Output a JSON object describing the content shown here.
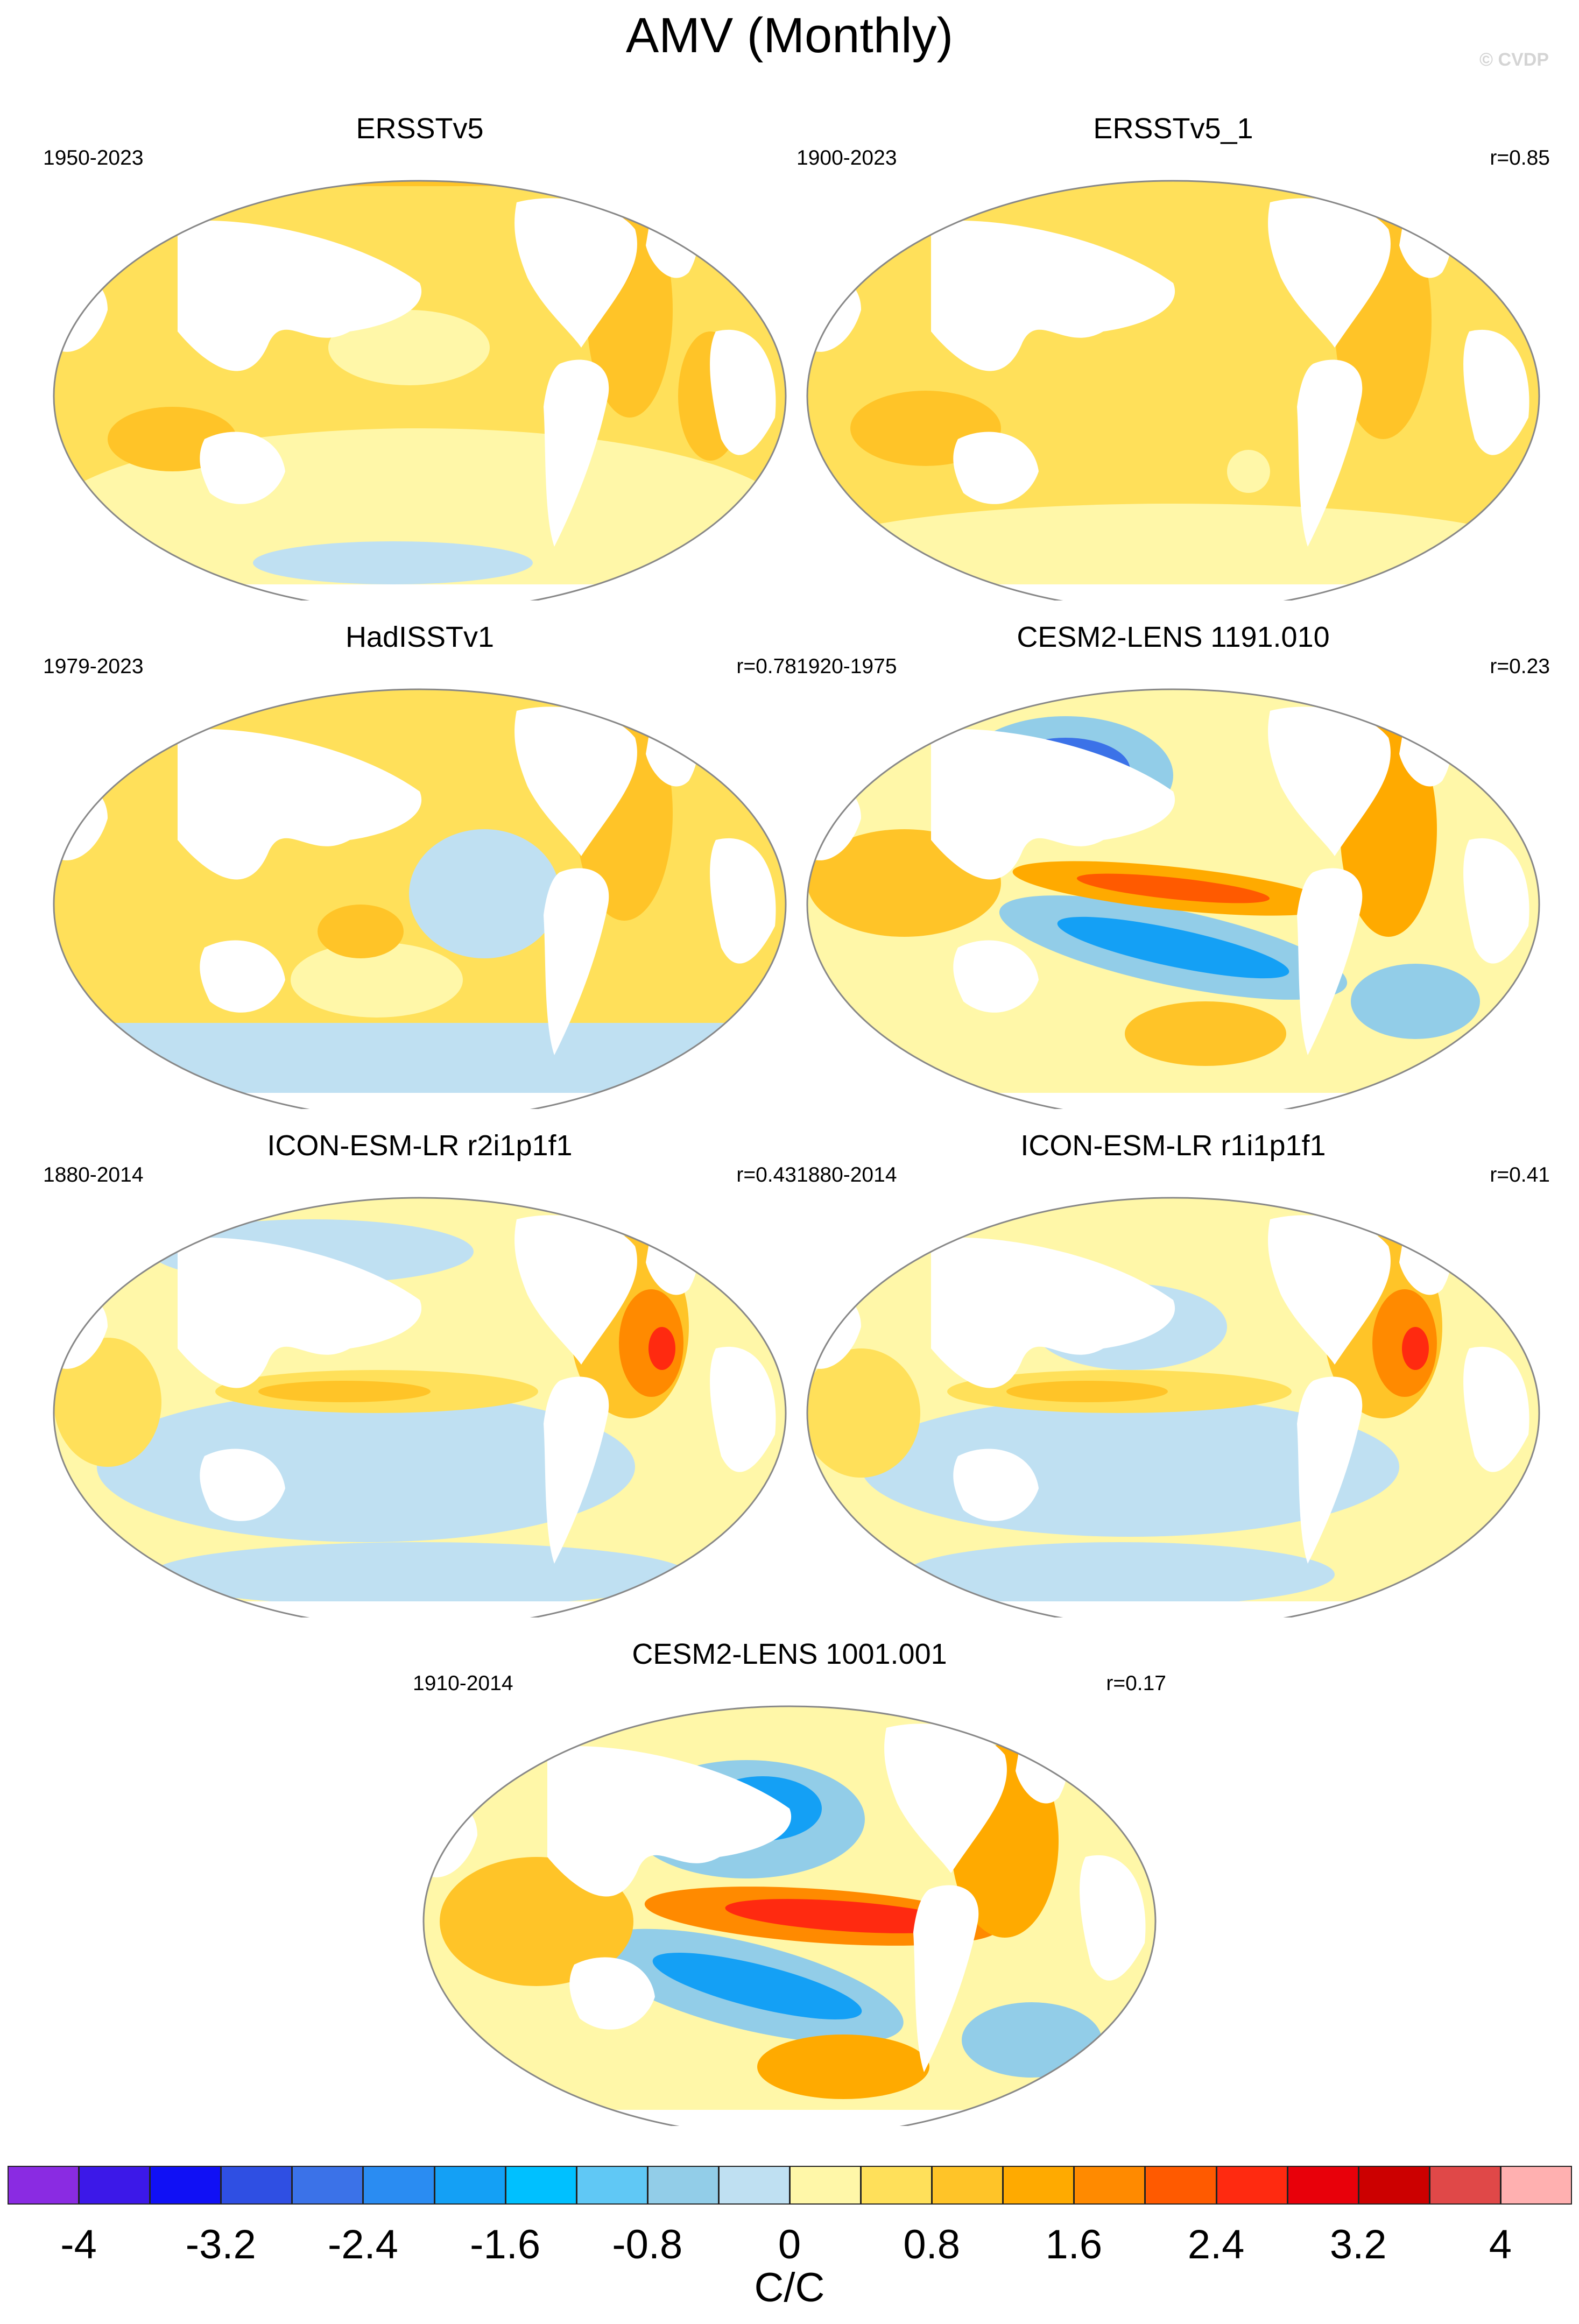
{
  "title": "AMV (Monthly)",
  "watermark": "© CVDP",
  "panels": [
    {
      "name": "ERSSTv5",
      "years": "1950-2023",
      "corr": ""
    },
    {
      "name": "ERSSTv5_1",
      "years": "1900-2023",
      "corr": "r=0.85"
    },
    {
      "name": "HadISSTv1",
      "years": "1979-2023",
      "corr": "r=0.78"
    },
    {
      "name": "CESM2-LENS 1191.010",
      "years": "1920-1975",
      "corr": "r=0.23"
    },
    {
      "name": "ICON-ESM-LR r2i1p1f1",
      "years": "1880-2014",
      "corr": "r=0.43"
    },
    {
      "name": "ICON-ESM-LR r1i1p1f1",
      "years": "1880-2014",
      "corr": "r=0.41"
    },
    {
      "name": "CESM2-LENS 1001.001",
      "years": "1910-2014",
      "corr": "r=0.17"
    }
  ],
  "colorbar": {
    "unit": "C/C",
    "tick_labels": [
      "-4",
      "-3.2",
      "-2.4",
      "-1.6",
      "-0.8",
      "0",
      "0.8",
      "1.6",
      "2.4",
      "3.2",
      "4"
    ],
    "colors": [
      "#8a2be2",
      "#3c18e8",
      "#1010f5",
      "#2f4fe3",
      "#3b72e8",
      "#2a8cf2",
      "#14a0f5",
      "#00c0ff",
      "#60c8f5",
      "#92cde8",
      "#bfe0f2",
      "#fff7a8",
      "#ffe05a",
      "#ffc428",
      "#ffaa00",
      "#ff8a00",
      "#ff5a00",
      "#ff2a10",
      "#e8000a",
      "#cc0000",
      "#e04848",
      "#ffb0b0"
    ]
  }
}
